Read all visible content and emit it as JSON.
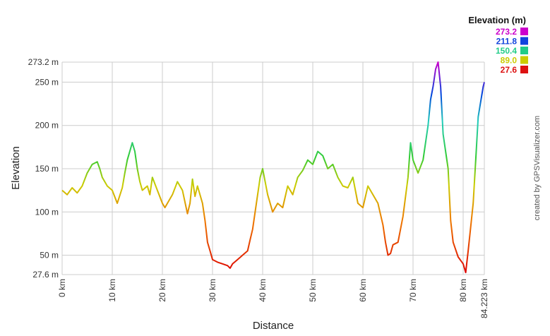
{
  "chart_data": {
    "type": "line",
    "title": "",
    "xlabel": "Distance",
    "ylabel": "Elevation",
    "xlim": [
      0,
      84.223
    ],
    "ylim": [
      27.6,
      273.2
    ],
    "x_ticks": [
      "0 km",
      "10 km",
      "20 km",
      "30 km",
      "40 km",
      "50 km",
      "60 km",
      "70 km",
      "80 km",
      "84.223 km"
    ],
    "x_tick_values": [
      0,
      10,
      20,
      30,
      40,
      50,
      60,
      70,
      80,
      84.223
    ],
    "y_ticks": [
      "27.6 m",
      "50 m",
      "100 m",
      "150 m",
      "200 m",
      "250 m",
      "273.2 m"
    ],
    "y_tick_values": [
      27.6,
      50,
      100,
      150,
      200,
      250,
      273.2
    ],
    "grid": true,
    "colorscale": [
      "#dd0000",
      "#cccc00",
      "#22dd88",
      "#0044dd",
      "#cc00cc"
    ],
    "legend": {
      "title": "Elevation (m)",
      "placement": "top-right",
      "entries": [
        {
          "label": "273.2",
          "color": "#cc00cc"
        },
        {
          "label": "211.8",
          "color": "#1144dd"
        },
        {
          "label": "150.4",
          "color": "#22cc88"
        },
        {
          "label": "89.0",
          "color": "#cccc00"
        },
        {
          "label": "27.6",
          "color": "#dd1111"
        }
      ]
    },
    "series": [
      {
        "x": [
          0,
          1,
          2,
          3,
          4,
          5,
          6,
          7,
          7.5,
          8,
          9,
          10,
          11,
          12,
          12.5,
          13,
          14,
          14.5,
          15,
          15.5,
          16,
          17,
          17.5,
          18,
          19,
          20,
          20.5,
          21,
          22,
          23,
          24,
          25,
          25.5,
          26,
          26.5,
          27,
          28,
          28.5,
          29,
          29.5,
          30,
          31,
          32,
          33,
          33.5,
          34,
          35,
          36,
          37,
          37.5,
          38,
          39,
          39.5,
          40,
          41,
          42,
          43,
          44,
          45,
          46,
          47,
          48,
          49,
          50,
          51,
          52,
          53,
          54,
          55,
          56,
          57,
          58,
          59,
          60,
          61,
          62,
          63,
          64,
          64.5,
          65,
          65.5,
          66,
          67,
          68,
          69,
          69.5,
          70,
          71,
          72,
          73,
          73.5,
          74,
          74.5,
          75,
          75.5,
          76,
          77,
          77.5,
          78,
          79,
          80,
          80.5,
          81,
          82,
          82.5,
          83,
          84,
          84.223
        ],
        "values": [
          125,
          120,
          128,
          122,
          130,
          145,
          155,
          158,
          150,
          140,
          130,
          125,
          110,
          128,
          145,
          160,
          180,
          170,
          150,
          135,
          125,
          130,
          120,
          140,
          125,
          110,
          105,
          110,
          120,
          135,
          125,
          98,
          110,
          138,
          118,
          130,
          110,
          90,
          65,
          55,
          45,
          42,
          40,
          38,
          35,
          40,
          45,
          50,
          55,
          68,
          80,
          120,
          140,
          150,
          120,
          100,
          110,
          105,
          130,
          120,
          140,
          148,
          160,
          155,
          170,
          165,
          150,
          155,
          140,
          130,
          128,
          140,
          110,
          105,
          130,
          120,
          110,
          85,
          65,
          50,
          52,
          62,
          65,
          95,
          140,
          180,
          160,
          145,
          160,
          200,
          230,
          245,
          265,
          273.2,
          245,
          190,
          150,
          90,
          65,
          48,
          40,
          30,
          55,
          110,
          160,
          210,
          245,
          250
        ]
      }
    ],
    "credit": "created by GPSVisualizer.com"
  }
}
